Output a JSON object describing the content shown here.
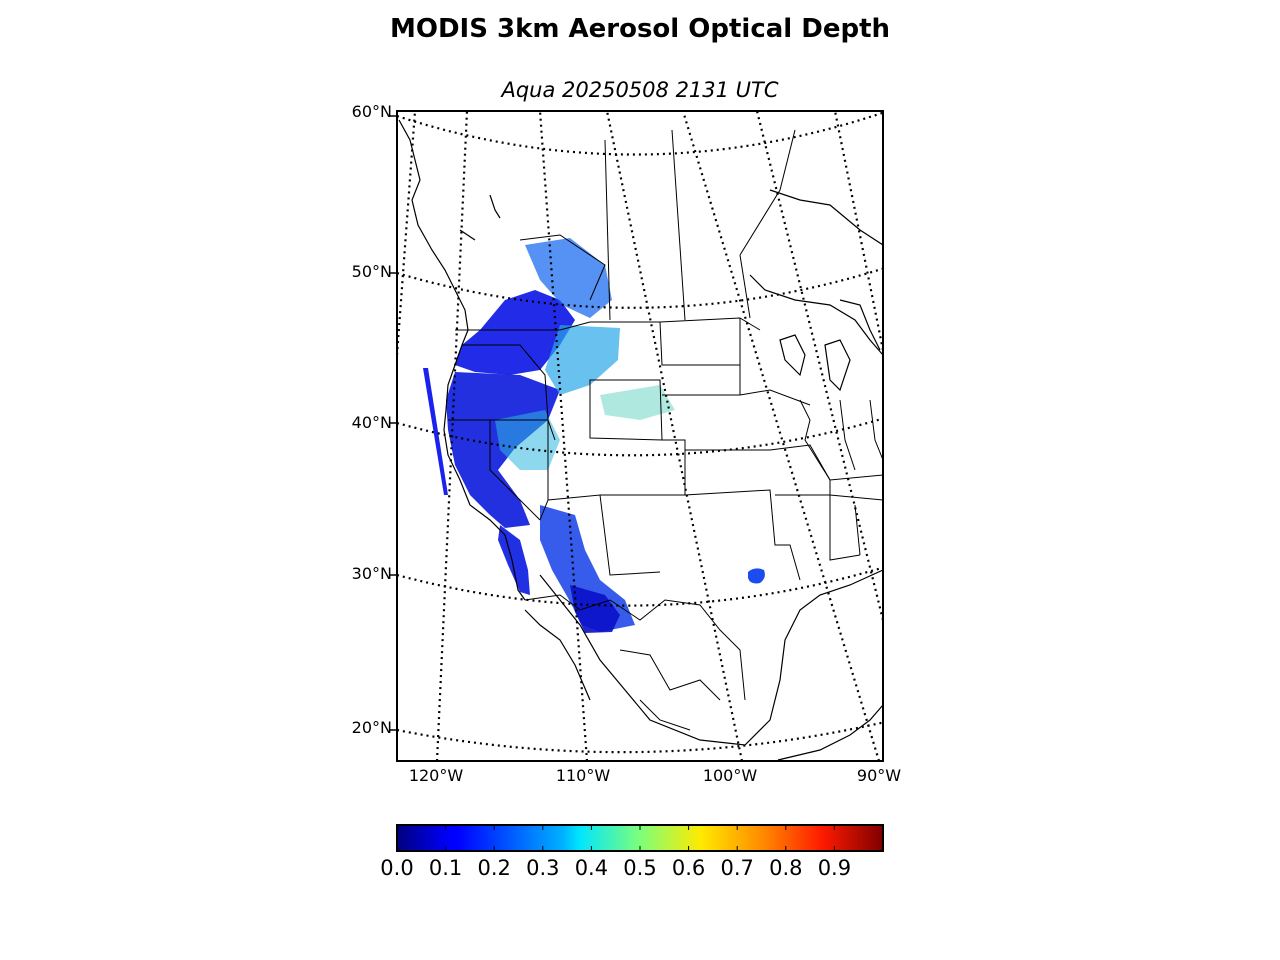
{
  "header": {
    "title": "MODIS 3km Aerosol Optical Depth",
    "subtitle": "Aqua 20250508 2131 UTC"
  },
  "map": {
    "projection": "conic",
    "lat_labels": [
      "60°N",
      "50°N",
      "40°N",
      "30°N",
      "20°N"
    ],
    "lon_labels": [
      "120°W",
      "110°W",
      "100°W",
      "90°W"
    ],
    "graticule_style": "dotted",
    "aod_regions": [
      {
        "name": "pacific-northwest",
        "level": "low"
      },
      {
        "name": "california-nevada",
        "level": "low"
      },
      {
        "name": "intermountain-west",
        "level": "moderate"
      },
      {
        "name": "arizona-new-mexico",
        "level": "low"
      },
      {
        "name": "texas-patch",
        "level": "low"
      }
    ]
  },
  "colorbar": {
    "colormap": "jet",
    "tick_labels": [
      "0.0",
      "0.1",
      "0.2",
      "0.3",
      "0.4",
      "0.5",
      "0.6",
      "0.7",
      "0.8",
      "0.9"
    ],
    "min": 0.0,
    "max": 1.0,
    "colors": [
      "#00007f",
      "#0000ff",
      "#007fff",
      "#00ffff",
      "#7fff7f",
      "#ffff00",
      "#ff7f00",
      "#ff0000",
      "#7f0000"
    ]
  }
}
